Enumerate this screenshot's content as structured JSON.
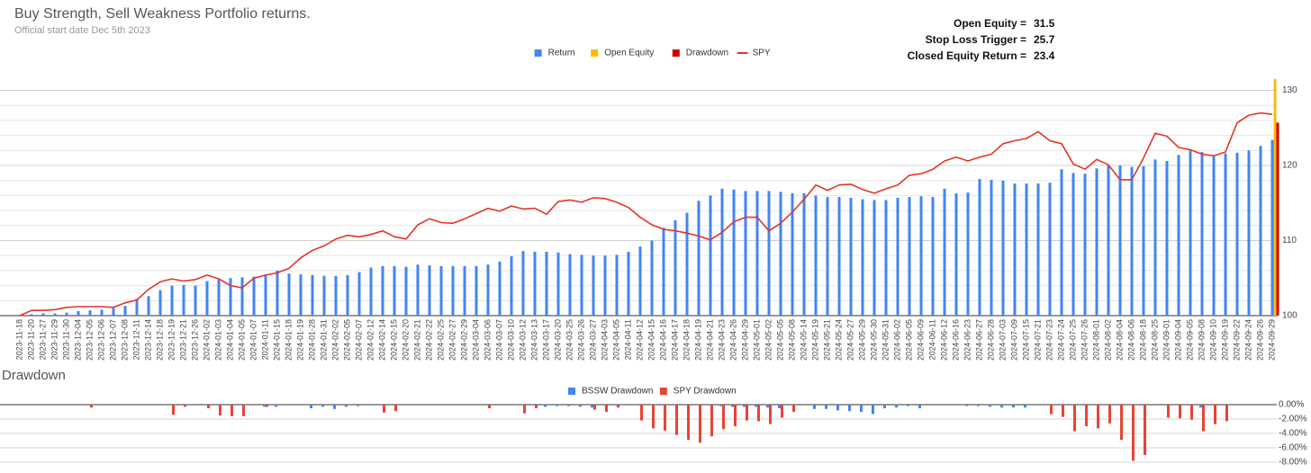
{
  "stats": [
    {
      "label": "Open Equity =",
      "value": 31.5
    },
    {
      "label": "Stop Loss Trigger =",
      "value": 25.7
    },
    {
      "label": "Closed Equity Return =",
      "value": 23.4
    }
  ],
  "chart_data": [
    {
      "type": "combo",
      "title": "Buy Strength, Sell Weakness Portfolio returns.",
      "subtitle": "Official start date Dec 5th 2023",
      "categories": [
        "2023-11-18",
        "2023-11-20",
        "2023-11-27",
        "2023-11-29",
        "2023-11-30",
        "2023-12-04",
        "2023-12-05",
        "2023-12-06",
        "2023-12-07",
        "2023-12-08",
        "2023-12-11",
        "2023-12-14",
        "2023-12-18",
        "2023-12-19",
        "2023-12-21",
        "2023-12-26",
        "2024-01-02",
        "2024-01-03",
        "2024-01-04",
        "2024-01-05",
        "2024-01-07",
        "2024-01-11",
        "2024-01-15",
        "2024-01-18",
        "2024-01-19",
        "2024-01-28",
        "2024-01-31",
        "2024-02-02",
        "2024-02-05",
        "2024-02-07",
        "2024-02-12",
        "2024-02-14",
        "2024-02-15",
        "2024-02-20",
        "2024-02-21",
        "2024-02-22",
        "2024-02-25",
        "2024-02-27",
        "2024-02-29",
        "2024-03-04",
        "2024-03-06",
        "2024-03-07",
        "2024-03-10",
        "2024-03-12",
        "2024-03-13",
        "2024-03-17",
        "2024-03-20",
        "2024-03-25",
        "2024-03-26",
        "2024-03-27",
        "2024-04-03",
        "2024-04-05",
        "2024-04-11",
        "2024-04-12",
        "2024-04-15",
        "2024-04-16",
        "2024-04-17",
        "2024-04-18",
        "2024-04-19",
        "2024-04-21",
        "2024-04-23",
        "2024-04-26",
        "2024-04-29",
        "2024-05-01",
        "2024-05-02",
        "2024-05-05",
        "2024-05-08",
        "2024-05-14",
        "2024-05-19",
        "2024-05-21",
        "2024-05-24",
        "2024-05-27",
        "2024-05-29",
        "2024-05-30",
        "2024-05-31",
        "2024-06-02",
        "2024-06-05",
        "2024-06-09",
        "2024-06-11",
        "2024-06-12",
        "2024-06-16",
        "2024-06-23",
        "2024-06-27",
        "2024-06-28",
        "2024-07-03",
        "2024-07-09",
        "2024-07-15",
        "2024-07-21",
        "2024-07-23",
        "2024-07-24",
        "2024-07-25",
        "2024-07-26",
        "2024-08-01",
        "2024-08-02",
        "2024-08-04",
        "2024-08-06",
        "2024-08-18",
        "2024-08-25",
        "2024-09-01",
        "2024-09-04",
        "2024-09-05",
        "2024-09-08",
        "2024-09-10",
        "2024-09-19",
        "2024-09-22",
        "2024-09-24",
        "2024-09-26",
        "2024-09-29"
      ],
      "series": [
        {
          "name": "Return",
          "type": "bar",
          "color": "#4285f4",
          "values": [
            100,
            100.2,
            100.3,
            100.3,
            100.4,
            100.6,
            100.7,
            100.8,
            101.0,
            101.3,
            102.2,
            102.6,
            103.4,
            104.0,
            104.1,
            104.0,
            104.6,
            104.8,
            105.0,
            105.1,
            105.2,
            105.5,
            106.0,
            105.6,
            105.5,
            105.4,
            105.3,
            105.3,
            105.4,
            105.8,
            106.4,
            106.6,
            106.6,
            106.5,
            106.8,
            106.7,
            106.6,
            106.6,
            106.6,
            106.6,
            106.8,
            107.2,
            107.9,
            108.6,
            108.5,
            108.5,
            108.4,
            108.2,
            108.1,
            108.0,
            108.0,
            108.1,
            108.5,
            109.2,
            110.0,
            111.7,
            112.7,
            113.7,
            115.3,
            116.0,
            116.9,
            116.8,
            116.6,
            116.6,
            116.6,
            116.5,
            116.3,
            116.3,
            116.0,
            115.8,
            115.8,
            115.7,
            115.5,
            115.4,
            115.4,
            115.7,
            115.8,
            115.9,
            115.8,
            116.9,
            116.3,
            116.4,
            118.2,
            118.1,
            118.0,
            117.6,
            117.6,
            117.6,
            117.7,
            119.5,
            119.0,
            118.9,
            119.6,
            120.0,
            120.0,
            119.8,
            119.9,
            120.8,
            120.6,
            121.4,
            122.0,
            121.8,
            121.2,
            121.6,
            121.7,
            122.0,
            122.6,
            123.4
          ]
        },
        {
          "name": "Open Equity",
          "type": "bar",
          "color": "#fbbc04",
          "values": [
            null,
            null,
            null,
            null,
            null,
            null,
            null,
            null,
            null,
            null,
            null,
            null,
            null,
            null,
            null,
            null,
            null,
            null,
            null,
            null,
            null,
            null,
            null,
            null,
            null,
            null,
            null,
            null,
            null,
            null,
            null,
            null,
            null,
            null,
            null,
            null,
            null,
            null,
            null,
            null,
            null,
            null,
            null,
            null,
            null,
            null,
            null,
            null,
            null,
            null,
            null,
            null,
            null,
            null,
            null,
            null,
            null,
            null,
            null,
            null,
            null,
            null,
            null,
            null,
            null,
            null,
            null,
            null,
            null,
            null,
            null,
            null,
            null,
            null,
            null,
            null,
            null,
            null,
            null,
            null,
            null,
            null,
            null,
            null,
            null,
            null,
            null,
            null,
            null,
            null,
            null,
            null,
            null,
            null,
            null,
            null,
            null,
            null,
            null,
            null,
            null,
            null,
            null,
            null,
            null,
            null,
            null,
            131.5
          ]
        },
        {
          "name": "Drawdown",
          "type": "bar",
          "color": "#cc0000",
          "values": [
            null,
            null,
            null,
            null,
            null,
            null,
            null,
            null,
            null,
            null,
            null,
            null,
            null,
            null,
            null,
            null,
            null,
            null,
            null,
            null,
            null,
            null,
            null,
            null,
            null,
            null,
            null,
            null,
            null,
            null,
            null,
            null,
            null,
            null,
            null,
            null,
            null,
            null,
            null,
            null,
            null,
            null,
            null,
            null,
            null,
            null,
            null,
            null,
            null,
            null,
            null,
            null,
            null,
            null,
            null,
            null,
            null,
            null,
            null,
            null,
            null,
            null,
            null,
            null,
            null,
            null,
            null,
            null,
            null,
            null,
            null,
            null,
            null,
            null,
            null,
            null,
            null,
            null,
            null,
            null,
            null,
            null,
            null,
            null,
            null,
            null,
            null,
            null,
            null,
            null,
            null,
            null,
            null,
            null,
            null,
            null,
            null,
            null,
            null,
            null,
            null,
            null,
            null,
            null,
            null,
            null,
            null,
            125.7
          ]
        },
        {
          "name": "SPY",
          "type": "line",
          "color": "#e2352b",
          "values": [
            100.0,
            100.7,
            100.7,
            100.8,
            101.1,
            101.2,
            101.2,
            101.2,
            101.1,
            101.7,
            102.1,
            103.5,
            104.5,
            104.9,
            104.6,
            104.8,
            105.4,
            104.9,
            104.0,
            103.7,
            105.0,
            105.4,
            105.7,
            106.3,
            107.7,
            108.7,
            109.3,
            110.2,
            110.7,
            110.5,
            110.8,
            111.3,
            110.5,
            110.2,
            112.1,
            112.9,
            112.4,
            112.3,
            112.9,
            113.6,
            114.3,
            113.9,
            114.6,
            114.2,
            114.3,
            113.5,
            115.2,
            115.4,
            115.1,
            115.7,
            115.6,
            115.1,
            114.4,
            113.1,
            112.1,
            111.5,
            111.3,
            111.0,
            110.6,
            110.1,
            111.1,
            112.5,
            113.1,
            113.1,
            111.3,
            112.3,
            113.8,
            115.5,
            117.4,
            116.7,
            117.4,
            117.5,
            116.8,
            116.3,
            116.9,
            117.4,
            118.7,
            118.9,
            119.5,
            120.6,
            121.1,
            120.6,
            121.1,
            121.5,
            122.9,
            123.3,
            123.6,
            124.5,
            123.3,
            122.9,
            120.2,
            119.5,
            120.8,
            120.1,
            118.1,
            118.1,
            121.0,
            124.3,
            123.9,
            122.4,
            122.1,
            121.5,
            121.3,
            121.8,
            125.7,
            126.7,
            127.0,
            126.8
          ]
        }
      ],
      "ylim": [
        100,
        131.5
      ],
      "yticks": [
        100,
        110,
        120,
        130
      ],
      "minor_yticks": [
        102,
        104,
        106,
        108,
        112,
        114,
        116,
        118,
        122,
        124,
        126,
        128
      ],
      "grid": true,
      "legend": "top"
    },
    {
      "type": "bar",
      "title": "Drawdown",
      "series": [
        {
          "name": "BSSW Drawdown",
          "color": "#4285f4",
          "values": [
            0,
            0,
            0,
            0,
            0,
            0,
            0,
            0,
            0,
            0,
            0,
            0,
            0,
            0,
            0,
            0,
            0,
            0,
            0,
            0,
            0,
            -0.3,
            -0.3,
            0,
            0,
            -0.5,
            -0.3,
            -0.6,
            -0.3,
            -0.2,
            0,
            0,
            0,
            0,
            0,
            0,
            0,
            0,
            0,
            0,
            0,
            0,
            0,
            0,
            0,
            -0.3,
            -0.2,
            -0.2,
            -0.3,
            -0.4,
            0,
            0,
            0,
            0,
            0,
            0,
            0,
            0,
            0,
            0,
            -0.2,
            -0.3,
            -0.3,
            -0.3,
            -0.4,
            -0.5,
            0,
            0,
            -0.6,
            -0.6,
            -0.8,
            -0.9,
            -1.0,
            -1.3,
            -0.5,
            -0.4,
            -0.2,
            -0.5,
            0,
            0,
            0,
            -0.2,
            -0.2,
            -0.3,
            -0.4,
            -0.4,
            -0.4,
            0,
            0,
            0,
            0,
            0,
            0,
            0,
            0,
            0,
            0,
            0,
            0,
            0,
            0,
            -0.4,
            0,
            0,
            0,
            0,
            0,
            0
          ]
        },
        {
          "name": "SPY Drawdown",
          "color": "#ea4335",
          "values": [
            0,
            0,
            0,
            0,
            0,
            0,
            -0.4,
            0,
            0,
            0,
            0,
            0,
            0,
            -1.4,
            -0.3,
            0,
            -0.5,
            -1.5,
            -1.6,
            -1.6,
            0,
            -0.3,
            0,
            0,
            0,
            0,
            0,
            0,
            0,
            0,
            0,
            -1.1,
            -0.9,
            0,
            0,
            0,
            0,
            0,
            0,
            0,
            -0.5,
            0,
            0,
            -1.2,
            -0.5,
            0,
            0,
            0,
            0,
            -0.7,
            -1.0,
            -0.4,
            0,
            -2.2,
            -3.3,
            -3.6,
            -4.2,
            -4.9,
            -5.3,
            -4.4,
            -3.4,
            -3.0,
            -2.2,
            -2.3,
            -2.7,
            -1.8,
            -1.0,
            0,
            0,
            0,
            0,
            0,
            0,
            0,
            0,
            0,
            0,
            0,
            0,
            0,
            0,
            0,
            0,
            0,
            0,
            0,
            0,
            0,
            -1.3,
            -1.7,
            -3.7,
            -3.0,
            -3.3,
            -2.6,
            -4.9,
            -7.8,
            -7.0,
            0,
            -1.8,
            -1.9,
            -2.1,
            -3.7,
            -2.7,
            -2.3,
            0,
            0,
            0,
            0
          ]
        }
      ],
      "ylim": [
        -8.25,
        0.25
      ],
      "yticks": [
        {
          "value": 0,
          "label": "0.00%"
        },
        {
          "value": -2,
          "label": "-2.00%"
        },
        {
          "value": -4,
          "label": "-4.00%"
        },
        {
          "value": -6,
          "label": "-6.00%"
        },
        {
          "value": -8,
          "label": "-8.00%"
        }
      ],
      "grid": true,
      "legend": "top"
    }
  ]
}
